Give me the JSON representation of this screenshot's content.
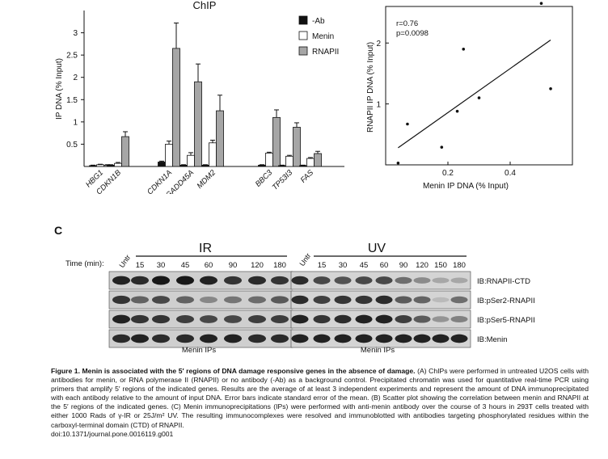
{
  "panel_c_label": "C",
  "chart_data": [
    {
      "type": "bar",
      "title": "ChIP",
      "ylabel": "IP DNA (% Input)",
      "xlabel": "",
      "ylim": [
        0,
        3.5
      ],
      "yticks": [
        0.5,
        1,
        1.5,
        2,
        2.5,
        3
      ],
      "ytick_labels": [
        "0.5",
        "1",
        "1.5",
        "2",
        "2.5",
        "3"
      ],
      "categories": [
        "HBG1",
        "CDKN1B",
        "CDKN1A",
        "GADD45A",
        "MDM2",
        "BBC3",
        "TP53I3",
        "FAS"
      ],
      "series": [
        {
          "name": "-Ab",
          "color": "#111111",
          "values": [
            0.02,
            0.03,
            0.1,
            0.03,
            0.03,
            0.03,
            0.02,
            0.02
          ],
          "errors": [
            0.01,
            0.01,
            0.02,
            0.01,
            0.01,
            0.01,
            0.01,
            0.01
          ]
        },
        {
          "name": "Menin",
          "color": "#ffffff",
          "values": [
            0.04,
            0.07,
            0.5,
            0.25,
            0.53,
            0.3,
            0.23,
            0.18
          ],
          "errors": [
            0.01,
            0.02,
            0.07,
            0.06,
            0.06,
            0.02,
            0.02,
            0.02
          ]
        },
        {
          "name": "RNAPII",
          "color": "#a6a6a6",
          "values": [
            0.03,
            0.67,
            2.65,
            1.9,
            1.25,
            1.1,
            0.88,
            0.29
          ],
          "errors": [
            0.01,
            0.11,
            0.57,
            0.4,
            0.35,
            0.17,
            0.1,
            0.05
          ]
        }
      ],
      "legend": "top-right"
    },
    {
      "type": "scatter",
      "xlabel": "Menin IP DNA (% Input)",
      "ylabel": "RNAPII IP DNA (% Input)",
      "xlim": [
        0,
        0.6
      ],
      "ylim": [
        0,
        2.6
      ],
      "xticks": [
        0.2,
        0.4
      ],
      "yticks": [
        1,
        2
      ],
      "xtick_labels": [
        "0.2",
        "0.4"
      ],
      "ytick_labels": [
        "1",
        "2"
      ],
      "x": [
        0.04,
        0.07,
        0.18,
        0.23,
        0.25,
        0.3,
        0.5,
        0.53
      ],
      "y": [
        0.03,
        0.67,
        0.29,
        0.88,
        1.9,
        1.1,
        2.65,
        1.25
      ],
      "fit_line": {
        "x": [
          0.04,
          0.53
        ],
        "y": [
          0.28,
          2.05
        ]
      },
      "annotations": [
        "r=0.76",
        "p=0.0098"
      ]
    }
  ],
  "blot": {
    "ir_label": "IR",
    "uv_label": "UV",
    "time_label": "Time (min):",
    "untr_label": "Untr",
    "ir_times": [
      "15",
      "30",
      "45",
      "60",
      "90",
      "120",
      "180"
    ],
    "uv_times": [
      "15",
      "30",
      "45",
      "60",
      "90",
      "120",
      "150",
      "180"
    ],
    "row_labels": [
      "IB:RNAPII-CTD",
      "IB:pSer2-RNAPII",
      "IB:pSer5-RNAPII",
      "IB:Menin"
    ],
    "footer_left": "Menin IPs",
    "footer_right": "Menin IPs",
    "ir_band_intensity": [
      [
        0.9,
        0.85,
        0.95,
        0.95,
        0.9,
        0.8,
        0.85,
        0.8
      ],
      [
        0.8,
        0.55,
        0.7,
        0.55,
        0.35,
        0.45,
        0.5,
        0.6
      ],
      [
        0.9,
        0.8,
        0.8,
        0.75,
        0.7,
        0.7,
        0.75,
        0.75
      ],
      [
        0.85,
        0.9,
        0.85,
        0.85,
        0.9,
        0.9,
        0.85,
        0.85
      ]
    ],
    "uv_band_intensity": [
      [
        0.85,
        0.7,
        0.65,
        0.7,
        0.7,
        0.5,
        0.35,
        0.2,
        0.2
      ],
      [
        0.85,
        0.75,
        0.8,
        0.8,
        0.85,
        0.6,
        0.55,
        0.1,
        0.5
      ],
      [
        0.9,
        0.8,
        0.85,
        0.9,
        0.9,
        0.75,
        0.6,
        0.3,
        0.4
      ],
      [
        0.9,
        0.9,
        0.9,
        0.9,
        0.9,
        0.9,
        0.9,
        0.9,
        0.9
      ]
    ]
  },
  "caption": {
    "fig_label": "Figure 1. Menin is associated with the 5′ regions of DNA damage responsive genes in the absence of damage.",
    "body": "(A) ChIPs were performed in untreated U2OS cells with antibodies for menin, or RNA polymerase II (RNAPII) or no antibody (-Ab) as a background control. Precipitated chromatin was used for quantitative real-time PCR using primers that amplify 5′ regions of the indicated genes. Results are the average of at least 3 independent experiments and represent the amount of DNA immunoprecipitated with each antibody relative to the amount of input DNA. Error bars indicate standard error of the mean. (B) Scatter plot showing the correlation between menin and RNAPII at the 5′ regions of the indicated genes. (C) Menin immunoprecipitations (IPs) were performed with anti-menin antibody over the course of 3 hours in 293T cells treated with either 1000 Rads of γ-IR or 25J/m² UV. The resulting immunocomplexes were resolved and immunoblotted with antibodies targeting phosphorylated residues within the carboxyl-terminal domain (CTD) of RNAPII.",
    "doi": "doi:10.1371/journal.pone.0016119.g001"
  }
}
